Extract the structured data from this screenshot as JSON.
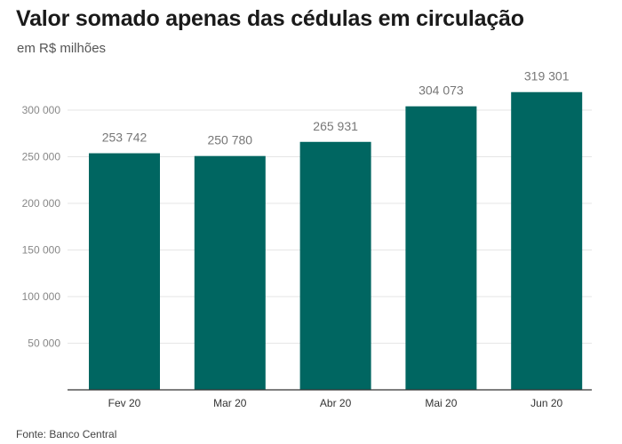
{
  "title": "Valor somado apenas das cédulas em circulação",
  "subtitle": "em R$ milhões",
  "source": "Fonte: Banco Central",
  "colors": {
    "bar": "#006661",
    "grid": "#e6e6e6",
    "axis": "#333333"
  },
  "chart_data": {
    "type": "bar",
    "title": "Valor somado apenas das cédulas em circulação",
    "subtitle": "em R$ milhões",
    "categories": [
      "Fev 20",
      "Mar 20",
      "Abr 20",
      "Mai 20",
      "Jun 20"
    ],
    "values": [
      253742,
      250780,
      265931,
      304073,
      319301
    ],
    "value_labels": [
      "253 742",
      "250 780",
      "265 931",
      "304 073",
      "319 301"
    ],
    "y_ticks": [
      50000,
      100000,
      150000,
      200000,
      250000,
      300000
    ],
    "y_tick_labels": [
      "50 000",
      "100 000",
      "150 000",
      "200 000",
      "250 000",
      "300 000"
    ],
    "ylim": [
      0,
      330000
    ],
    "grid": true,
    "xlabel": "",
    "ylabel": ""
  }
}
